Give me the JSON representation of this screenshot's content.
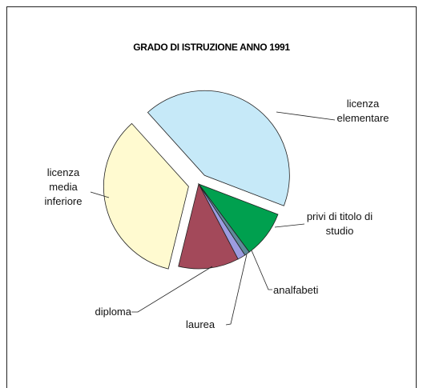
{
  "chart_data": {
    "type": "pie",
    "title": "GRADO DI ISTRUZIONE ANNO 1991",
    "categories": [
      "licenza elementare",
      "privi di titolo di studio",
      "analfabeti",
      "laurea",
      "diploma",
      "licenza media inferiore"
    ],
    "values": [
      42.5,
      9,
      1,
      1.5,
      11.5,
      34.5
    ],
    "colors": [
      "#c6e9f8",
      "#00a04f",
      "#5f8a9a",
      "#9c9ce0",
      "#a3495a",
      "#fffad0"
    ],
    "explode": [
      true,
      false,
      false,
      false,
      false,
      true
    ]
  }
}
